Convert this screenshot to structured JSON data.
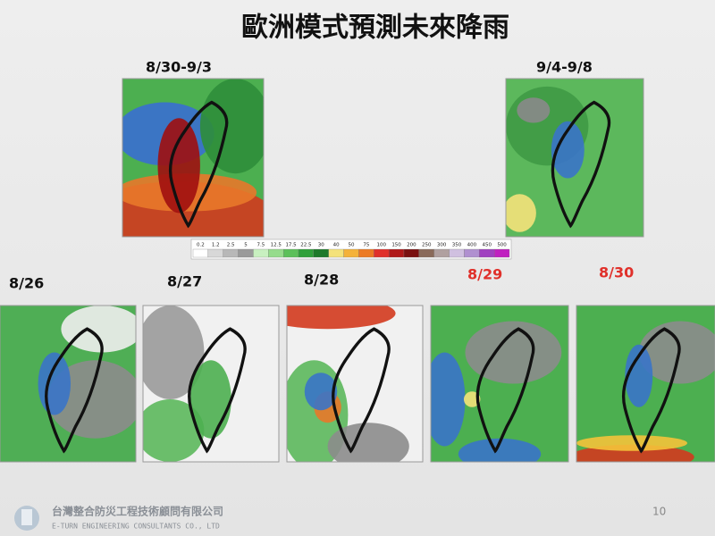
{
  "title": "歐洲模式預測未來降雨",
  "periods": [
    "8/30-9/3",
    "9/4-9/8"
  ],
  "colorbar": {
    "ticks": [
      "0.2",
      "1.2",
      "2.5",
      "5",
      "7.5",
      "12.5",
      "17.5",
      "22.5",
      "30",
      "40",
      "50",
      "75",
      "100",
      "150",
      "200",
      "250",
      "300",
      "350",
      "400",
      "450",
      "500"
    ]
  },
  "days": [
    "8/26",
    "8/27",
    "8/28",
    "8/29",
    "8/30"
  ],
  "footer": {
    "company": "台灣整合防災工程技術顧問有限公司",
    "company_en": "E-TURN ENGINEERING CONSULTANTS CO., LTD",
    "page_number": "10"
  }
}
